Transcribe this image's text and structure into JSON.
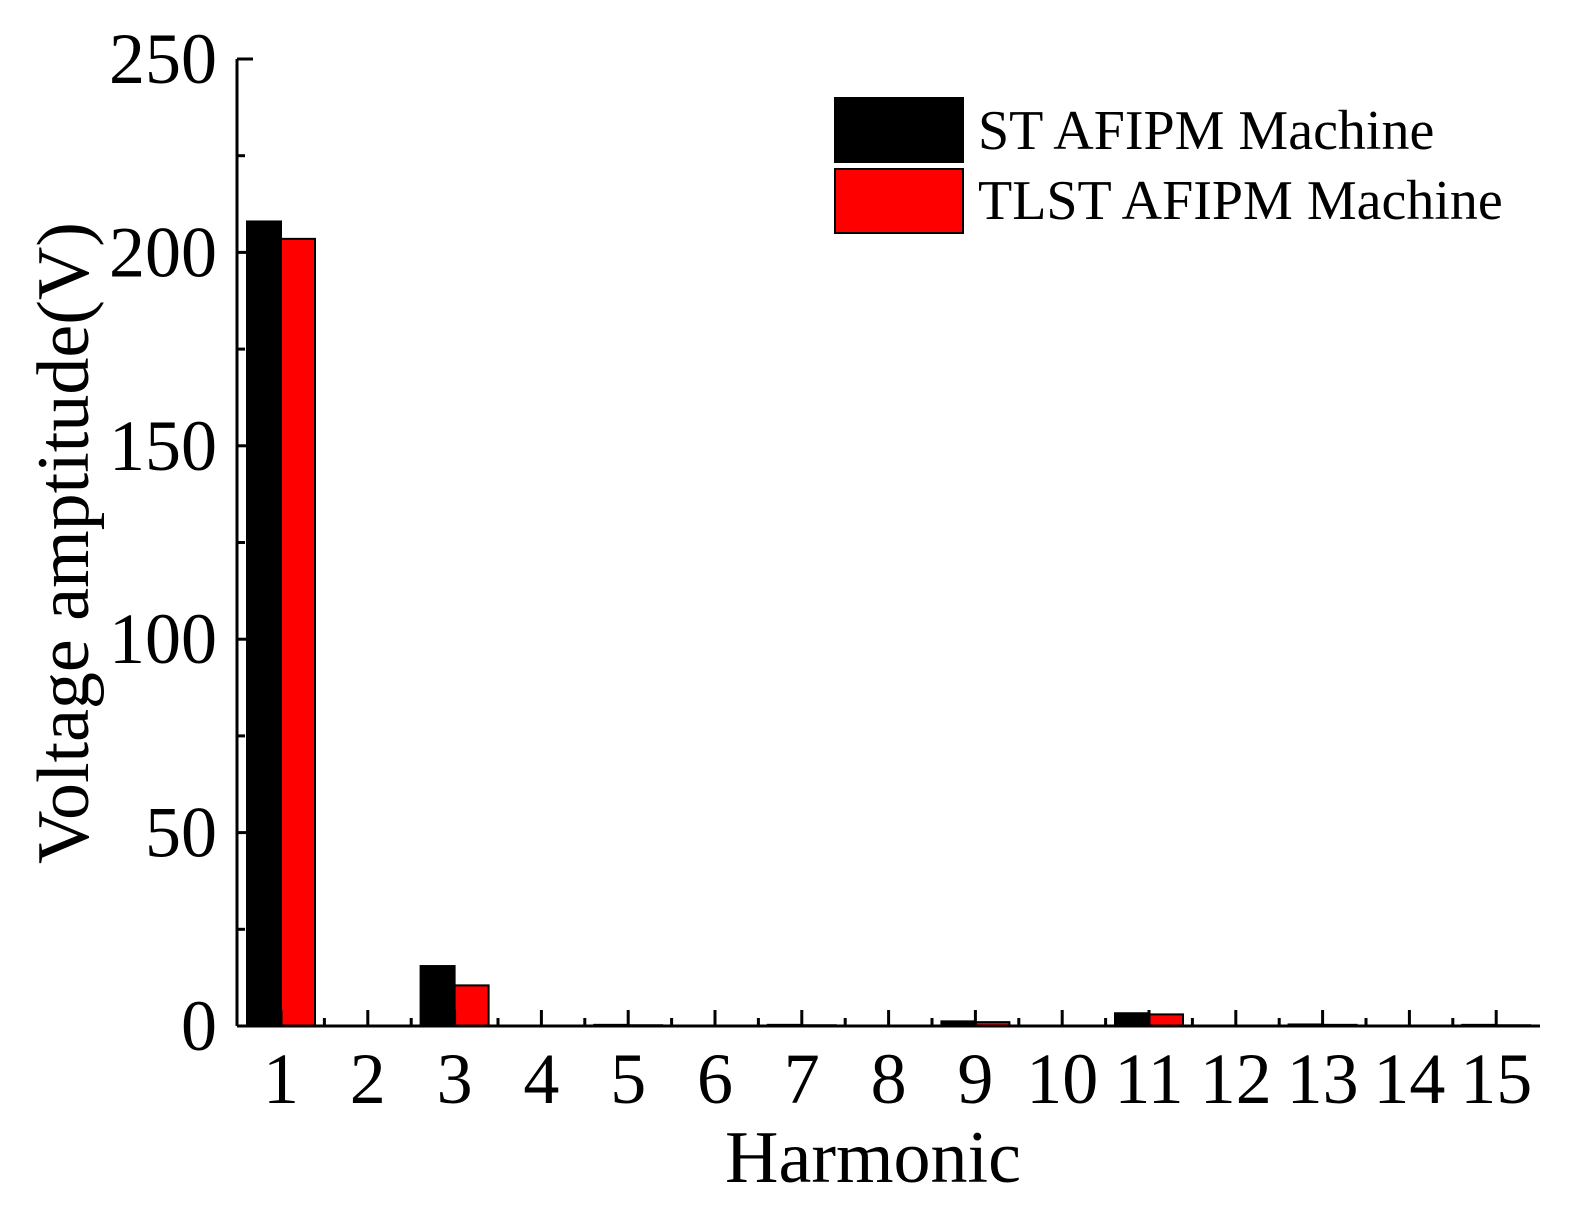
{
  "chart_data": {
    "type": "bar",
    "title": "",
    "xlabel": "Harmonic",
    "ylabel": "Voltage amptitude(V)",
    "ylim": [
      0,
      250
    ],
    "yticks": [
      "0",
      "50",
      "100",
      "150",
      "200",
      "250"
    ],
    "categories": [
      "1",
      "2",
      "3",
      "4",
      "5",
      "6",
      "7",
      "8",
      "9",
      "10",
      "11",
      "12",
      "13",
      "14",
      "15"
    ],
    "series": [
      {
        "name": "ST AFIPM Machine",
        "color": "#000000",
        "values": [
          208,
          0,
          15.5,
          0,
          0.3,
          0,
          0.3,
          0,
          1.2,
          0,
          3.3,
          0,
          0.4,
          0,
          0.3
        ]
      },
      {
        "name": "TLST AFIPM Machine",
        "color": "#ff0000",
        "values": [
          203.5,
          0,
          10.5,
          0,
          0.2,
          0,
          0.2,
          0,
          1.0,
          0,
          3.0,
          0,
          0.3,
          0,
          0.2
        ]
      }
    ],
    "grid": false,
    "legend_position": "top-right"
  }
}
